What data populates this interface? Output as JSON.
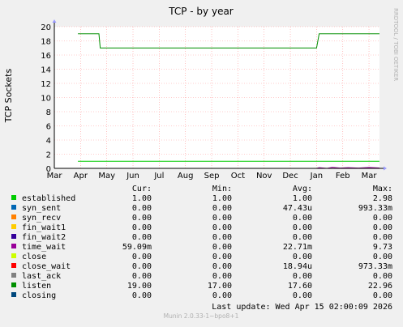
{
  "chart_data": {
    "type": "line",
    "title": "TCP - by year",
    "ylabel": "TCP Sockets",
    "watermark": "RRDTOOL / TOBI OETIKER",
    "ylim": [
      0,
      20
    ],
    "yticks": [
      0,
      2,
      4,
      6,
      8,
      10,
      12,
      14,
      16,
      18,
      20
    ],
    "xlim": [
      0,
      12.4
    ],
    "xticks": [
      "Mar",
      "Apr",
      "May",
      "Jun",
      "Jul",
      "Aug",
      "Sep",
      "Oct",
      "Nov",
      "Dec",
      "Jan",
      "Feb",
      "Mar"
    ],
    "grid": true,
    "series": [
      {
        "name": "established",
        "color": "#00cc00",
        "points": [
          [
            0.9,
            1
          ],
          [
            12.4,
            1
          ]
        ]
      },
      {
        "name": "syn_sent",
        "color": "#0066b3",
        "points": [
          [
            0.9,
            0
          ],
          [
            12.4,
            0
          ]
        ]
      },
      {
        "name": "syn_recv",
        "color": "#ff8000",
        "points": [
          [
            0.9,
            0
          ],
          [
            12.4,
            0
          ]
        ]
      },
      {
        "name": "fin_wait1",
        "color": "#ffcc00",
        "points": [
          [
            0.9,
            0
          ],
          [
            12.4,
            0
          ]
        ]
      },
      {
        "name": "fin_wait2",
        "color": "#330099",
        "points": [
          [
            0.9,
            0
          ],
          [
            12.4,
            0
          ]
        ]
      },
      {
        "name": "time_wait",
        "color": "#990099",
        "points": [
          [
            0.9,
            0
          ],
          [
            10.0,
            0
          ],
          [
            10.1,
            0.1
          ],
          [
            10.4,
            0
          ],
          [
            10.6,
            0.15
          ],
          [
            10.9,
            0.05
          ],
          [
            11.2,
            0.1
          ],
          [
            11.6,
            0.05
          ],
          [
            12.0,
            0.12
          ],
          [
            12.4,
            0.06
          ]
        ]
      },
      {
        "name": "close",
        "color": "#ccff00",
        "points": [
          [
            0.9,
            0
          ],
          [
            12.4,
            0
          ]
        ]
      },
      {
        "name": "close_wait",
        "color": "#ff0000",
        "points": [
          [
            0.9,
            0
          ],
          [
            12.4,
            0
          ]
        ]
      },
      {
        "name": "last_ack",
        "color": "#808080",
        "points": [
          [
            0.9,
            0
          ],
          [
            12.4,
            0
          ]
        ]
      },
      {
        "name": "listen",
        "color": "#008f00",
        "points": [
          [
            0.9,
            19
          ],
          [
            1.7,
            19
          ],
          [
            1.75,
            17
          ],
          [
            10.0,
            17
          ],
          [
            10.1,
            19
          ],
          [
            12.4,
            19
          ]
        ]
      },
      {
        "name": "closing",
        "color": "#00487d",
        "points": [
          [
            0.9,
            0
          ],
          [
            12.4,
            0
          ]
        ]
      }
    ]
  },
  "legend": {
    "headers": {
      "cur": "Cur:",
      "min": "Min:",
      "avg": "Avg:",
      "max": "Max:"
    },
    "rows": [
      {
        "name": "established",
        "color": "#00cc00",
        "cur": "1.00",
        "min": "1.00",
        "avg": "1.00",
        "max": "2.98"
      },
      {
        "name": "syn_sent",
        "color": "#0066b3",
        "cur": "0.00",
        "min": "0.00",
        "avg": "47.43u",
        "max": "993.33m"
      },
      {
        "name": "syn_recv",
        "color": "#ff8000",
        "cur": "0.00",
        "min": "0.00",
        "avg": "0.00",
        "max": "0.00"
      },
      {
        "name": "fin_wait1",
        "color": "#ffcc00",
        "cur": "0.00",
        "min": "0.00",
        "avg": "0.00",
        "max": "0.00"
      },
      {
        "name": "fin_wait2",
        "color": "#330099",
        "cur": "0.00",
        "min": "0.00",
        "avg": "0.00",
        "max": "0.00"
      },
      {
        "name": "time_wait",
        "color": "#990099",
        "cur": "59.09m",
        "min": "0.00",
        "avg": "22.71m",
        "max": "9.73"
      },
      {
        "name": "close",
        "color": "#ccff00",
        "cur": "0.00",
        "min": "0.00",
        "avg": "0.00",
        "max": "0.00"
      },
      {
        "name": "close_wait",
        "color": "#ff0000",
        "cur": "0.00",
        "min": "0.00",
        "avg": "18.94u",
        "max": "973.33m"
      },
      {
        "name": "last_ack",
        "color": "#808080",
        "cur": "0.00",
        "min": "0.00",
        "avg": "0.00",
        "max": "0.00"
      },
      {
        "name": "listen",
        "color": "#008f00",
        "cur": "19.00",
        "min": "17.00",
        "avg": "17.60",
        "max": "22.96"
      },
      {
        "name": "closing",
        "color": "#00487d",
        "cur": "0.00",
        "min": "0.00",
        "avg": "0.00",
        "max": "0.00"
      }
    ]
  },
  "footer": {
    "last_update": "Last update: Wed Apr 15 02:00:09 2026",
    "munin": "Munin 2.0.33-1~bpo8+1"
  }
}
